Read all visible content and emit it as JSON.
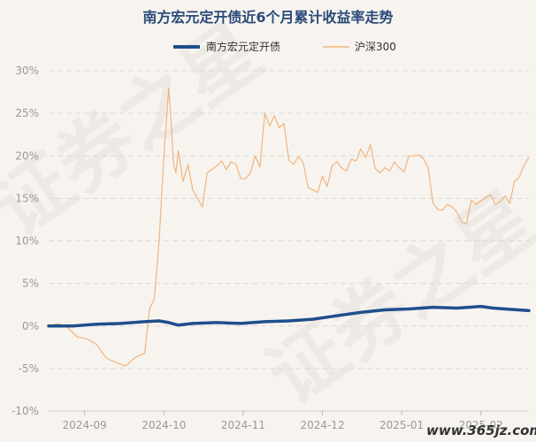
{
  "chart_data": {
    "type": "line",
    "title": "南方宏元定开债近6个月累计收益率走势",
    "xlabel": "",
    "ylabel": "",
    "ylim": [
      -10,
      30
    ],
    "yticks": [
      "30%",
      "25%",
      "20%",
      "15%",
      "10%",
      "5%",
      "0%",
      "-5%",
      "-10%"
    ],
    "ytick_values": [
      30,
      25,
      20,
      15,
      10,
      5,
      0,
      -5,
      -10
    ],
    "xticks": [
      "2024-09",
      "2024-10",
      "2024-11",
      "2024-12",
      "2025-01",
      "2025-02"
    ],
    "xtick_days": [
      15,
      48,
      81,
      114,
      147,
      180
    ],
    "xlim": [
      0,
      200
    ],
    "legend_position": "top",
    "grid": "horizontal-dashed",
    "series": [
      {
        "name": "南方宏元定开债",
        "color": "#1f4e8c",
        "x": [
          0,
          10,
          20,
          30,
          40,
          46,
          50,
          54,
          60,
          70,
          80,
          90,
          100,
          110,
          120,
          130,
          140,
          150,
          160,
          170,
          175,
          180,
          185,
          190,
          200
        ],
        "values": [
          0,
          0.0,
          0.2,
          0.3,
          0.5,
          0.6,
          0.4,
          0.1,
          0.3,
          0.4,
          0.3,
          0.5,
          0.6,
          0.8,
          1.2,
          1.6,
          1.9,
          2.0,
          2.2,
          2.1,
          2.2,
          2.3,
          2.1,
          2.0,
          1.8
        ]
      },
      {
        "name": "沪深300",
        "color": "#f0b47c",
        "x": [
          0,
          4,
          8,
          12,
          16,
          20,
          24,
          28,
          32,
          36,
          40,
          42,
          44,
          46,
          48,
          50,
          51,
          52,
          53,
          54,
          56,
          58,
          60,
          62,
          64,
          66,
          68,
          70,
          72,
          74,
          76,
          78,
          80,
          82,
          84,
          86,
          88,
          90,
          92,
          94,
          96,
          98,
          100,
          102,
          104,
          106,
          108,
          110,
          112,
          114,
          116,
          118,
          120,
          122,
          124,
          126,
          128,
          130,
          132,
          134,
          136,
          138,
          140,
          142,
          144,
          146,
          148,
          150,
          152,
          154,
          156,
          158,
          160,
          162,
          164,
          166,
          168,
          170,
          172,
          174,
          176,
          178,
          180,
          182,
          184,
          186,
          188,
          190,
          192,
          194,
          196,
          198,
          200
        ],
        "values": [
          0,
          0.3,
          -0.2,
          -1.3,
          -1.5,
          -2.2,
          -3.8,
          -4.3,
          -4.7,
          -3.7,
          -3.2,
          2.0,
          3.2,
          10.0,
          20.0,
          28.0,
          24.0,
          19.0,
          18.0,
          20.6,
          17.0,
          19.0,
          16.0,
          15.0,
          14.0,
          18.0,
          18.4,
          18.8,
          19.4,
          18.4,
          19.3,
          19.0,
          17.3,
          17.3,
          18.0,
          20.0,
          18.7,
          25.0,
          23.5,
          24.7,
          23.3,
          23.8,
          19.5,
          19.0,
          19.9,
          19.2,
          16.3,
          16.0,
          15.7,
          17.6,
          16.4,
          18.8,
          19.3,
          18.6,
          18.2,
          19.6,
          19.4,
          20.8,
          19.8,
          21.3,
          18.5,
          18.0,
          18.6,
          18.2,
          19.3,
          18.6,
          18.1,
          20.0,
          20.0,
          20.1,
          19.7,
          18.6,
          14.5,
          13.7,
          13.6,
          14.3,
          14.0,
          13.4,
          12.2,
          12.0,
          14.8,
          14.3,
          14.7,
          15.1,
          15.4,
          14.3,
          14.6,
          15.3,
          14.4,
          17.0,
          17.5,
          18.9,
          19.8
        ]
      }
    ]
  },
  "watermark_text": [
    "证券之星",
    "证券之星"
  ],
  "site_label": "www.365jz.com"
}
